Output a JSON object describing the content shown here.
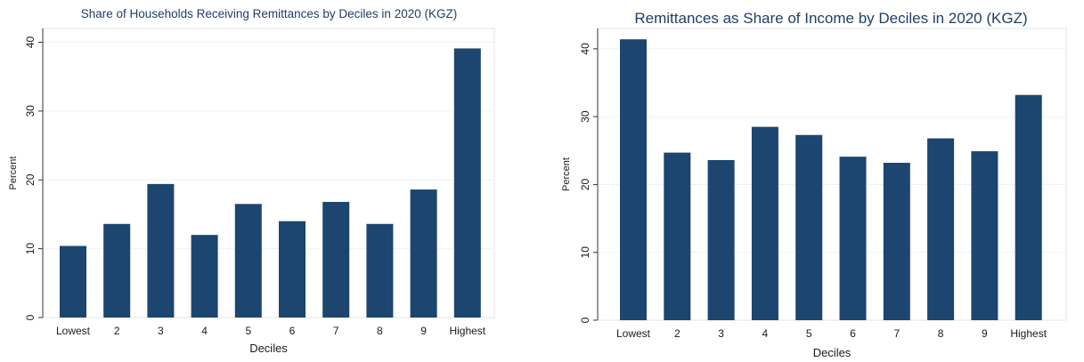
{
  "chart_data": [
    {
      "type": "bar",
      "title": "Share of Households Receiving Remittances by Deciles in 2020 (KGZ)",
      "xlabel": "Deciles",
      "ylabel": "Percent",
      "categories": [
        "Lowest",
        "2",
        "3",
        "4",
        "5",
        "6",
        "7",
        "8",
        "9",
        "Highest"
      ],
      "values": [
        10.4,
        13.6,
        19.4,
        12.0,
        16.5,
        14.0,
        16.8,
        13.6,
        18.6,
        39.1
      ],
      "ylim": [
        0,
        42
      ],
      "yticks": [
        0,
        10,
        20,
        30,
        40
      ],
      "grid": true,
      "bar_color": "#1c4570"
    },
    {
      "type": "bar",
      "title": "Remittances as Share of Income by Deciles in 2020 (KGZ)",
      "xlabel": "Deciles",
      "ylabel": "Percent",
      "categories": [
        "Lowest",
        "2",
        "3",
        "4",
        "5",
        "6",
        "7",
        "8",
        "9",
        "Highest"
      ],
      "values": [
        41.4,
        24.7,
        23.6,
        28.5,
        27.3,
        24.1,
        23.2,
        26.8,
        24.9,
        33.2
      ],
      "ylim": [
        0,
        43
      ],
      "yticks": [
        0,
        10,
        20,
        30,
        40
      ],
      "grid": true,
      "bar_color": "#1c4570"
    }
  ]
}
